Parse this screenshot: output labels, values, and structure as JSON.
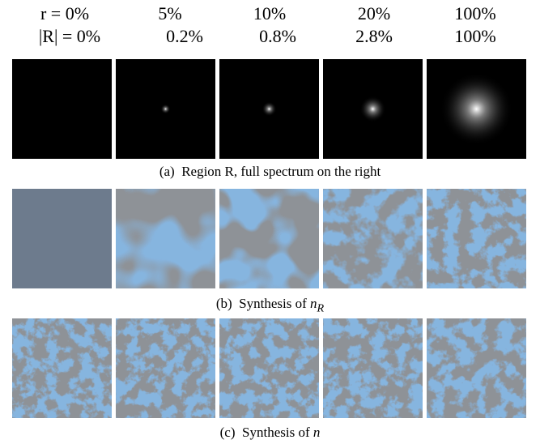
{
  "header": {
    "r": [
      "r = 0%",
      "5%",
      "10%",
      "20%",
      "100%"
    ],
    "R": [
      "|R| = 0%",
      "0.2%",
      "0.8%",
      "2.8%",
      "100%"
    ]
  },
  "captions": [
    {
      "label": "(a)",
      "text": "Region R, full spectrum on the right"
    },
    {
      "label": "(b)",
      "text": "Synthesis of",
      "math": "n",
      "sub": "R"
    },
    {
      "label": "(c)",
      "text": "Synthesis of",
      "math": "n"
    }
  ]
}
